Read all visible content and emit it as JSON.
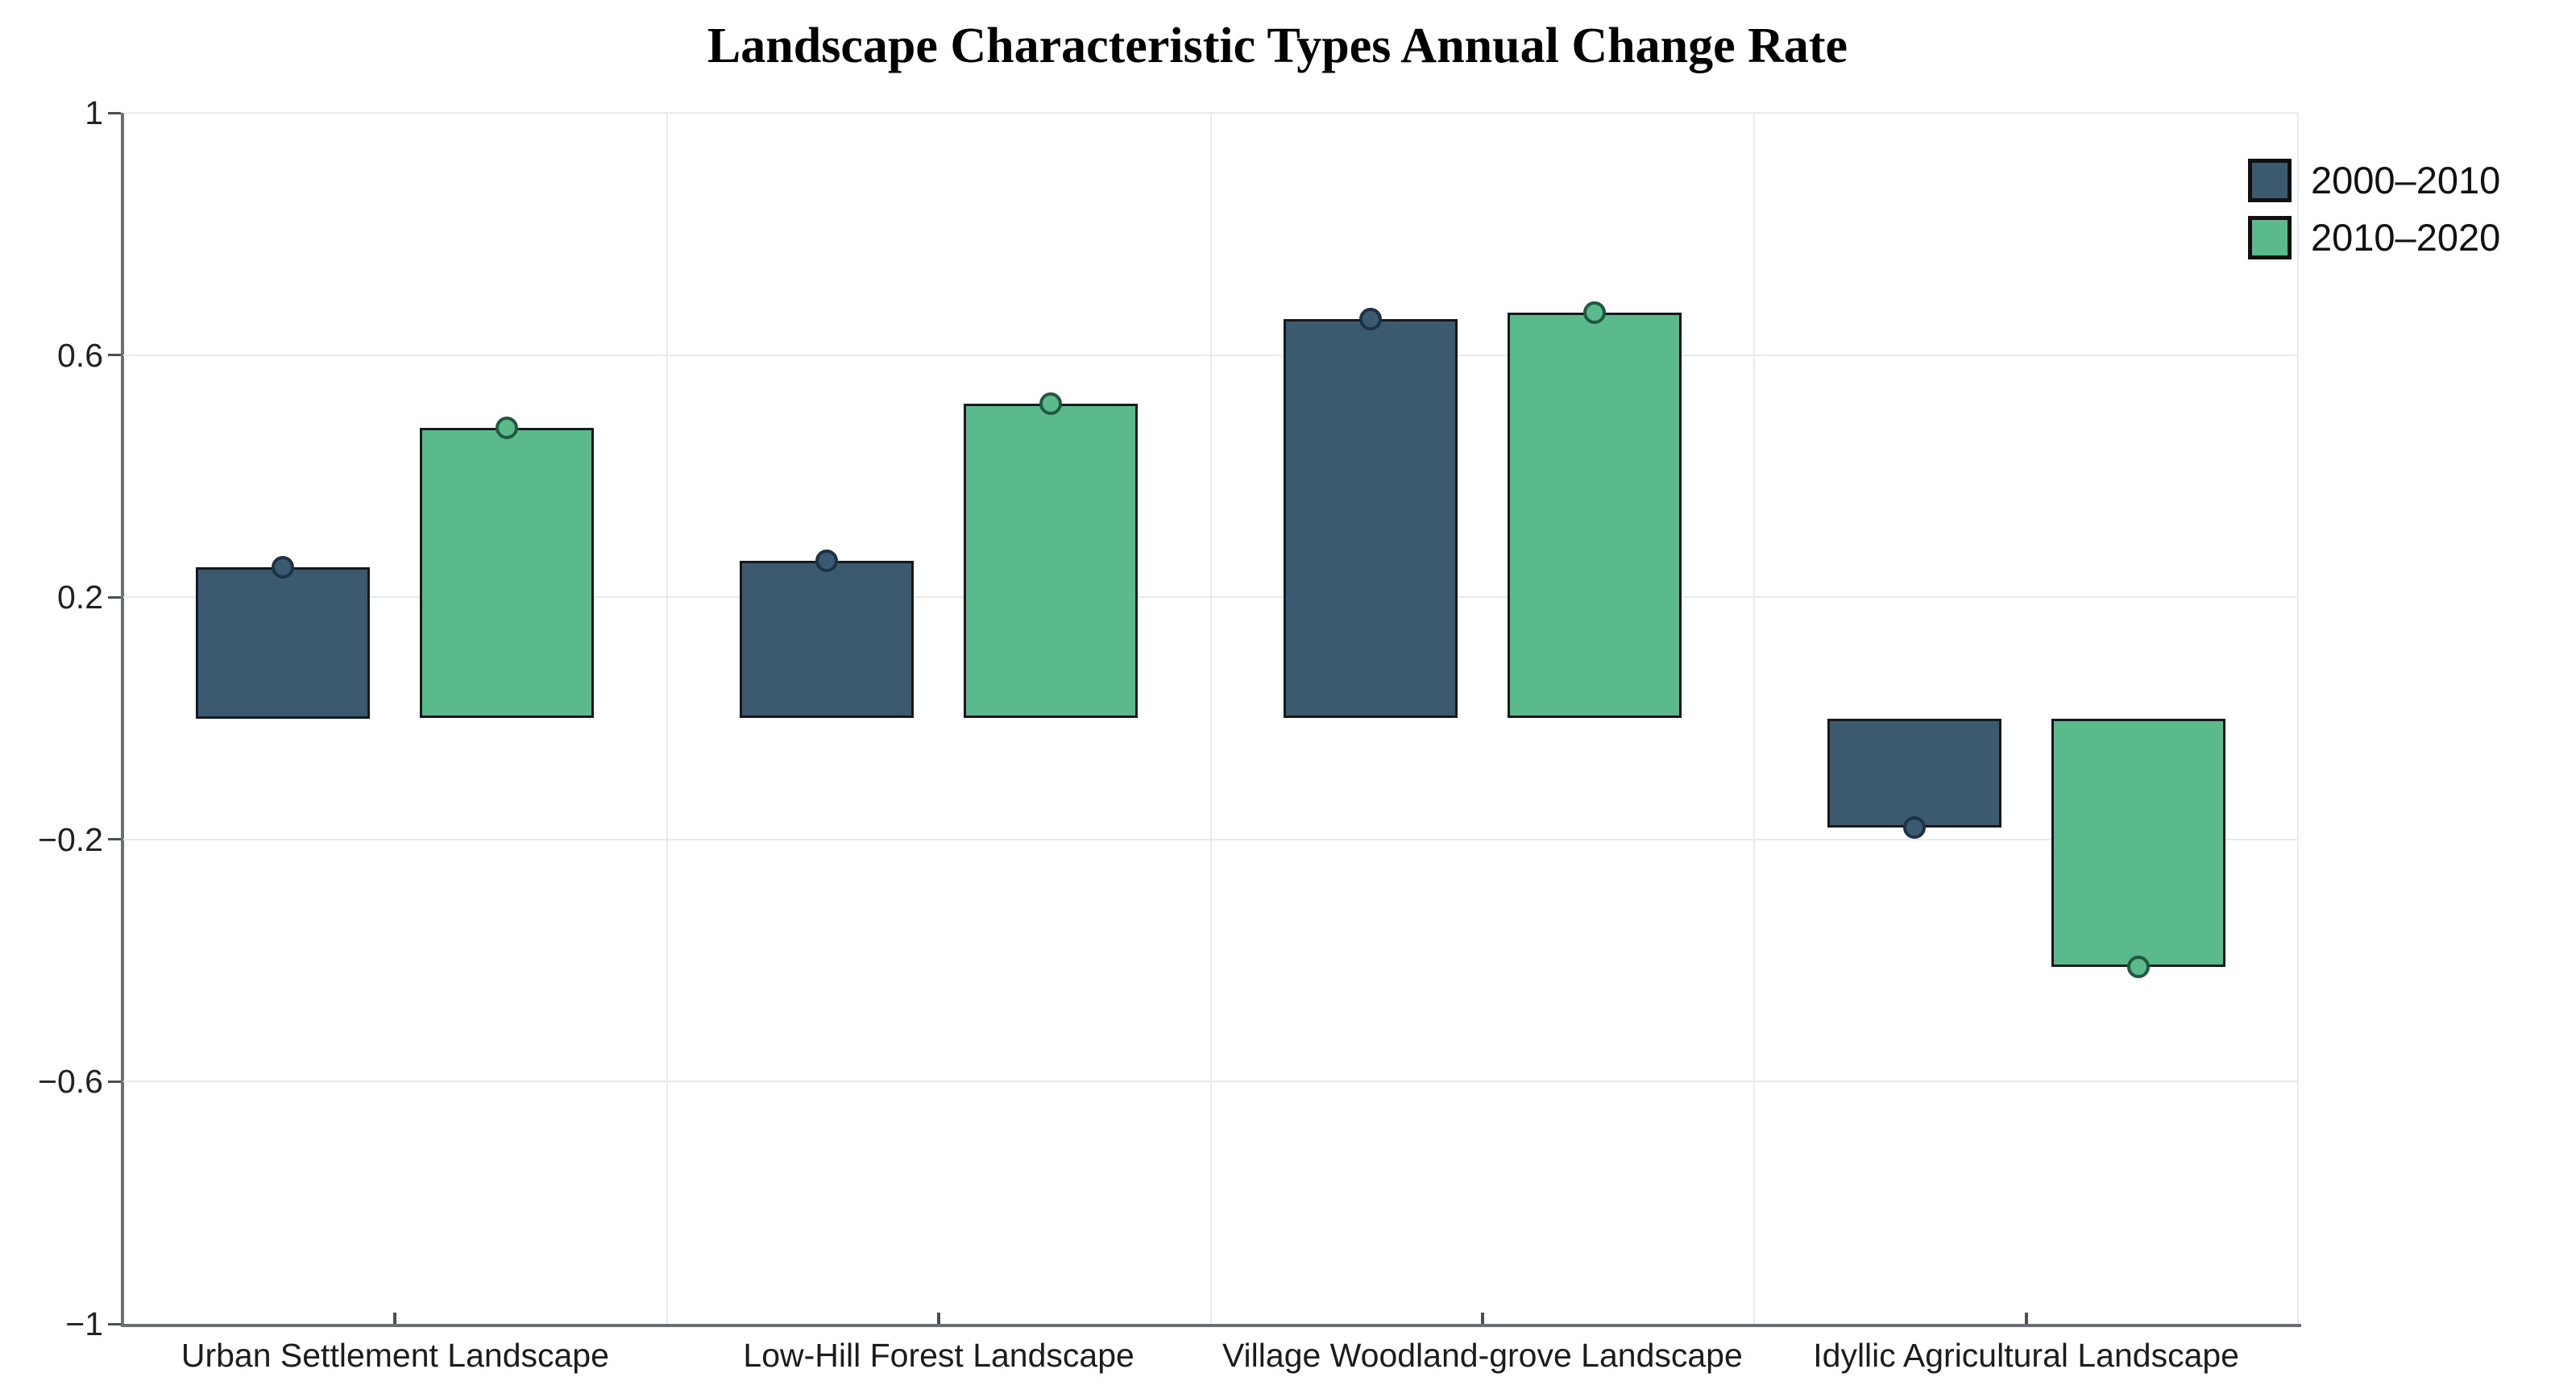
{
  "title": "Landscape Characteristic Types Annual Change Rate",
  "chart_data": {
    "type": "bar",
    "title": "Landscape Characteristic Types Annual Change Rate",
    "categories": [
      "Urban Settlement Landscape",
      "Low-Hill Forest Landscape",
      "Village Woodland-grove Landscape",
      "Idyllic Agricultural Landscape"
    ],
    "series": [
      {
        "name": "2000–2010",
        "color": "#3b5a70",
        "marker_stroke": "#1d3244",
        "values": [
          0.25,
          0.26,
          0.66,
          -0.18
        ]
      },
      {
        "name": "2010–2020",
        "color": "#5aba8b",
        "marker_stroke": "#20593f",
        "values": [
          0.48,
          0.52,
          0.67,
          -0.41
        ]
      }
    ],
    "xlabel": "",
    "ylabel": "",
    "ylim": [
      -1,
      1
    ],
    "yticks": [
      1,
      0.6,
      0.2,
      -0.2,
      -0.6,
      -1
    ],
    "ytick_labels": [
      "1",
      "0.6",
      "0.2",
      "−0.2",
      "−0.6",
      "−1"
    ],
    "grid": true,
    "bar_markers": "circle at bar value end",
    "legend_position": "top-right"
  },
  "colors": {
    "background": "#ffffff",
    "axis_line": "#6a6f74",
    "gridline": "#e8eaf1",
    "bar_border": "#15181d",
    "text": "#1c1c1c"
  }
}
